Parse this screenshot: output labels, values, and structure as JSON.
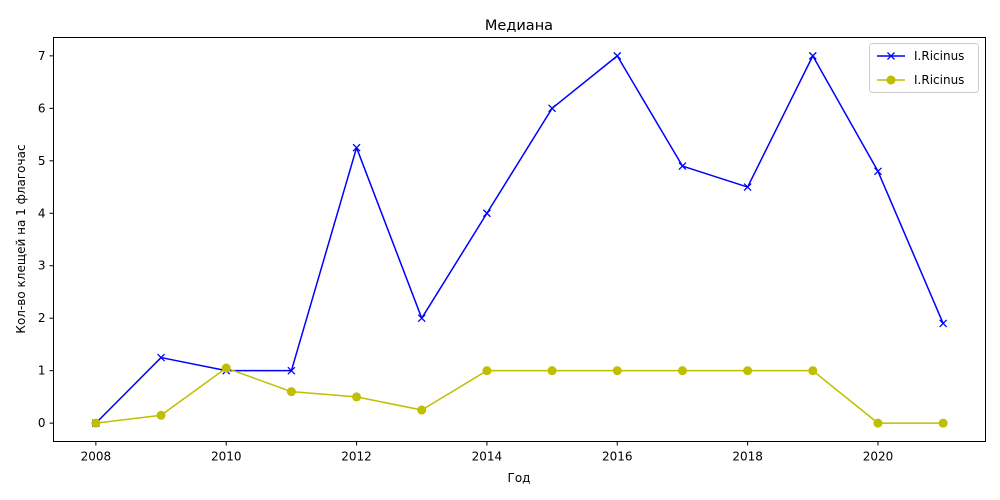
{
  "chart_data": {
    "type": "line",
    "title": "Медиана",
    "xlabel": "Год",
    "ylabel": "Кол-во клещей на 1 флагочас",
    "x": [
      2008,
      2009,
      2010,
      2011,
      2012,
      2013,
      2014,
      2015,
      2016,
      2017,
      2018,
      2019,
      2020,
      2021
    ],
    "xlim": [
      2007.35,
      2021.65
    ],
    "ylim": [
      -0.35,
      7.35
    ],
    "xticks": [
      2008,
      2010,
      2012,
      2014,
      2016,
      2018,
      2020
    ],
    "yticks": [
      0,
      1,
      2,
      3,
      4,
      5,
      6,
      7
    ],
    "grid": false,
    "legend_position": "top-right",
    "series": [
      {
        "name": "I.Ricinus",
        "color": "#0000ff",
        "marker": "x",
        "values": [
          0,
          1.25,
          1,
          1,
          5.25,
          2,
          4,
          6,
          7,
          4.9,
          4.5,
          7,
          4.8,
          1.9
        ]
      },
      {
        "name": "I.Ricinus",
        "color": "#bfbf00",
        "marker": "circle",
        "values": [
          0,
          0.15,
          1.05,
          0.6,
          0.5,
          0.25,
          1,
          1,
          1,
          1,
          1,
          1,
          0,
          0
        ]
      }
    ]
  }
}
